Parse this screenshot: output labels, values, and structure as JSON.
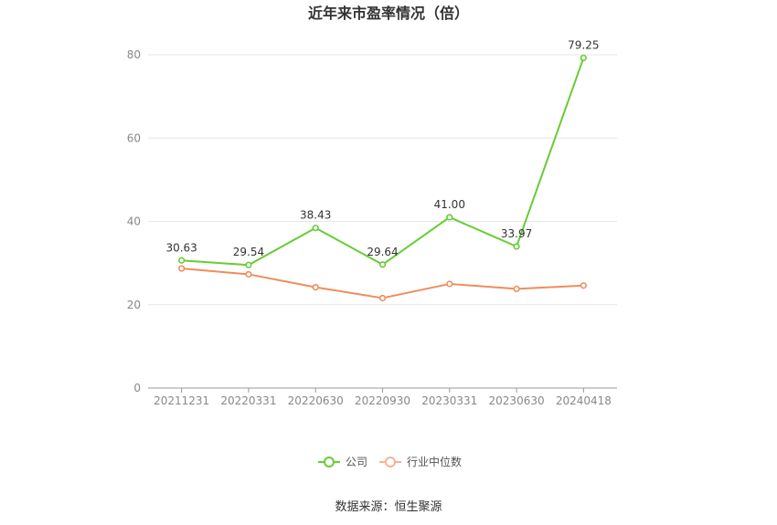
{
  "chart_data": {
    "type": "line",
    "title": "近年来市盈率情况（倍）",
    "categories": [
      "20211231",
      "20220331",
      "20220630",
      "20220930",
      "20230331",
      "20230630",
      "20240418"
    ],
    "ylim": [
      0,
      80
    ],
    "yticks": [
      0,
      20,
      40,
      60,
      80
    ],
    "grid": true,
    "legend_position": "bottom-center",
    "series": [
      {
        "name": "公司",
        "color": "#66cc33",
        "values": [
          30.63,
          29.54,
          38.43,
          29.64,
          41.0,
          33.97,
          79.25
        ],
        "labels": [
          "30.63",
          "29.54",
          "38.43",
          "29.64",
          "41.00",
          "33.97",
          "79.25"
        ]
      },
      {
        "name": "行业中位数",
        "color": "#f08c5a",
        "values": [
          28.7,
          27.3,
          24.2,
          21.6,
          25.0,
          23.8,
          24.6
        ]
      }
    ],
    "source": "数据来源：恒生聚源"
  }
}
